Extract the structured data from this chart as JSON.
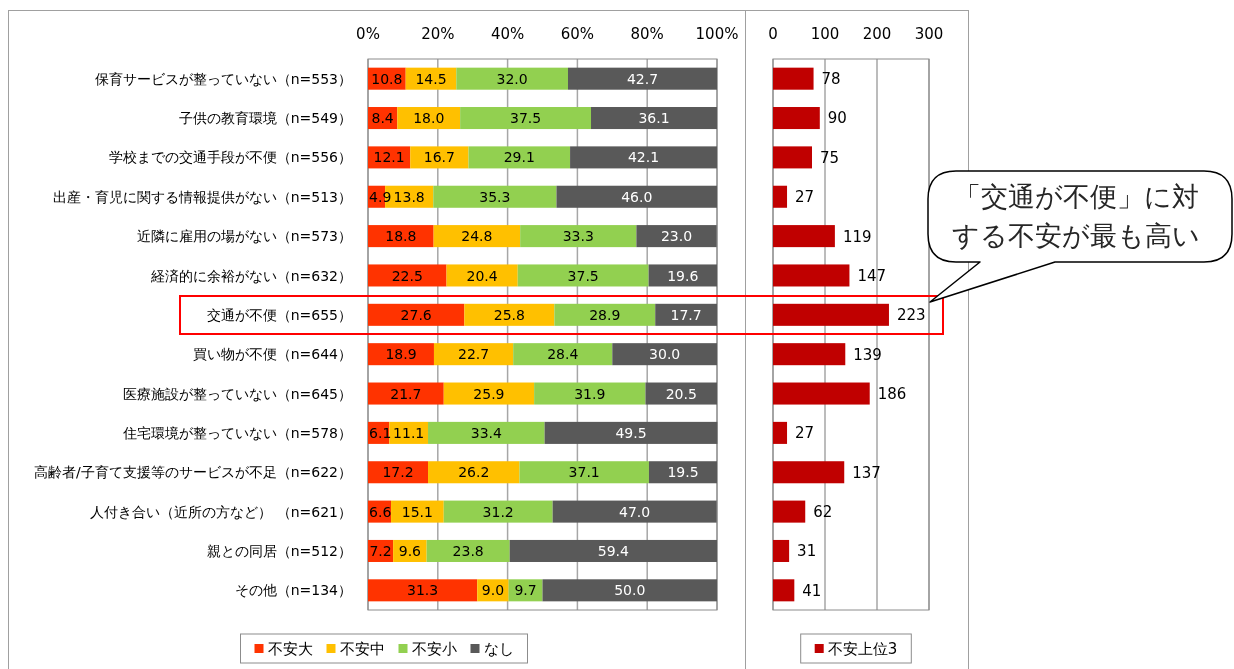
{
  "chart_data": [
    {
      "type": "bar",
      "orientation": "horizontal",
      "stacked": true,
      "categories": [
        "保育サービスが整っていない（n=553）",
        "子供の教育環境（n=549）",
        "学校までの交通手段が不便（n=556）",
        "出産・育児に関する情報提供がない（n=513）",
        "近隣に雇用の場がない（n=573）",
        "経済的に余裕がない（n=632）",
        "交通が不便（n=655）",
        "買い物が不便（n=644）",
        "医療施設が整っていない（n=645）",
        "住宅環境が整っていない（n=578）",
        "高齢者/子育て支援等のサービスが不足（n=622）",
        "人付き合い（近所の方など） （n=621）",
        "親との同居（n=512）",
        "その他（n=134）"
      ],
      "series": [
        {
          "name": "不安大",
          "color": "#ff3300",
          "values": [
            10.8,
            8.4,
            12.1,
            4.9,
            18.8,
            22.5,
            27.6,
            18.9,
            21.7,
            6.1,
            17.2,
            6.6,
            7.2,
            31.3
          ],
          "value_labels": [
            "10.8",
            "8.4",
            "12.1",
            "4.9",
            "18.8",
            "22.5",
            "27.6",
            "18.9",
            "21.7",
            "6.1",
            "17.2",
            "6.6",
            "7.2",
            "31.3"
          ]
        },
        {
          "name": "不安中",
          "color": "#ffc000",
          "values": [
            14.5,
            18.0,
            16.7,
            13.8,
            24.8,
            20.4,
            25.8,
            22.7,
            25.9,
            11.1,
            26.2,
            15.1,
            9.6,
            9.0
          ],
          "value_labels": [
            "14.5",
            "18.0",
            "16.7",
            "13.8",
            "24.8",
            "20.4",
            "25.8",
            "22.7",
            "25.9",
            "11.1",
            "26.2",
            "15.1",
            "9.6",
            "9.0"
          ]
        },
        {
          "name": "不安小",
          "color": "#92d050",
          "values": [
            32.0,
            37.5,
            29.1,
            35.3,
            33.3,
            37.5,
            28.9,
            28.4,
            31.9,
            33.4,
            37.1,
            31.2,
            23.8,
            9.7
          ],
          "value_labels": [
            "32.0",
            "37.5",
            "29.1",
            "35.3",
            "33.3",
            "37.5",
            "28.9",
            "28.4",
            "31.9",
            "33.4",
            "37.1",
            "31.2",
            "23.8",
            "9.7"
          ]
        },
        {
          "name": "なし",
          "color": "#595959",
          "values": [
            42.7,
            36.1,
            42.1,
            46.0,
            23.0,
            19.6,
            17.7,
            30.0,
            20.5,
            49.5,
            19.5,
            47.0,
            59.4,
            50.0
          ],
          "value_labels": [
            "42.7",
            "36.1",
            "42.1",
            "46.0",
            "23.0",
            "19.6",
            "17.7",
            "30.0",
            "20.5",
            "49.5",
            "19.5",
            "47.0",
            "59.4",
            "50.0"
          ]
        }
      ],
      "xlim": [
        0,
        100
      ],
      "xticks": [
        {
          "value": 0,
          "label": "0%"
        },
        {
          "value": 20,
          "label": "20%"
        },
        {
          "value": 40,
          "label": "40%"
        },
        {
          "value": 60,
          "label": "60%"
        },
        {
          "value": 80,
          "label": "80%"
        },
        {
          "value": 100,
          "label": "100%"
        }
      ],
      "grid": "x",
      "legend": "bottom"
    },
    {
      "type": "bar",
      "orientation": "horizontal",
      "categories": [
        null,
        null,
        null,
        null,
        null,
        null,
        null,
        null,
        null,
        null,
        null,
        null,
        null,
        null
      ],
      "series": [
        {
          "name": "不安上位3",
          "color": "#c00000",
          "values": [
            78,
            90,
            75,
            27,
            119,
            147,
            223,
            139,
            186,
            27,
            137,
            62,
            31,
            41
          ]
        }
      ],
      "xlim": [
        0,
        300
      ],
      "xticks": [
        0,
        100,
        200,
        300
      ],
      "grid": "x",
      "legend": "bottom",
      "tick_labels": "x",
      "data_labels": true,
      "annotations": [
        "「交通が不便」に対する不安が最も高い"
      ]
    }
  ]
}
